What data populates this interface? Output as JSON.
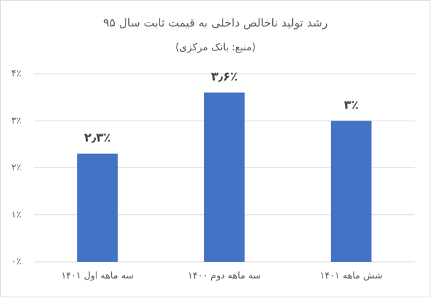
{
  "chart_data": {
    "type": "bar",
    "title": "رشد تولید ناخالص داخلی به قیمت ثابت سال ۹۵",
    "subtitle": "(منبع: بانک مرکزی)",
    "categories": [
      "سه ماهه اول ۱۴۰۱",
      "سه ماهه دوم ۱۴۰۰",
      "شش ماهه ۱۴۰۱"
    ],
    "values": [
      2.3,
      3.6,
      3
    ],
    "value_labels": [
      "۲٫۳٪",
      "۳٫۶٪",
      "۳٪"
    ],
    "color": "#4472c4",
    "ylim": [
      0,
      4
    ],
    "yticks": [
      {
        "value": 0,
        "label": "۰٪"
      },
      {
        "value": 1,
        "label": "۱٪"
      },
      {
        "value": 2,
        "label": "۲٪"
      },
      {
        "value": 3,
        "label": "۳٪"
      },
      {
        "value": 4,
        "label": "۴٪"
      }
    ],
    "grid": true
  }
}
